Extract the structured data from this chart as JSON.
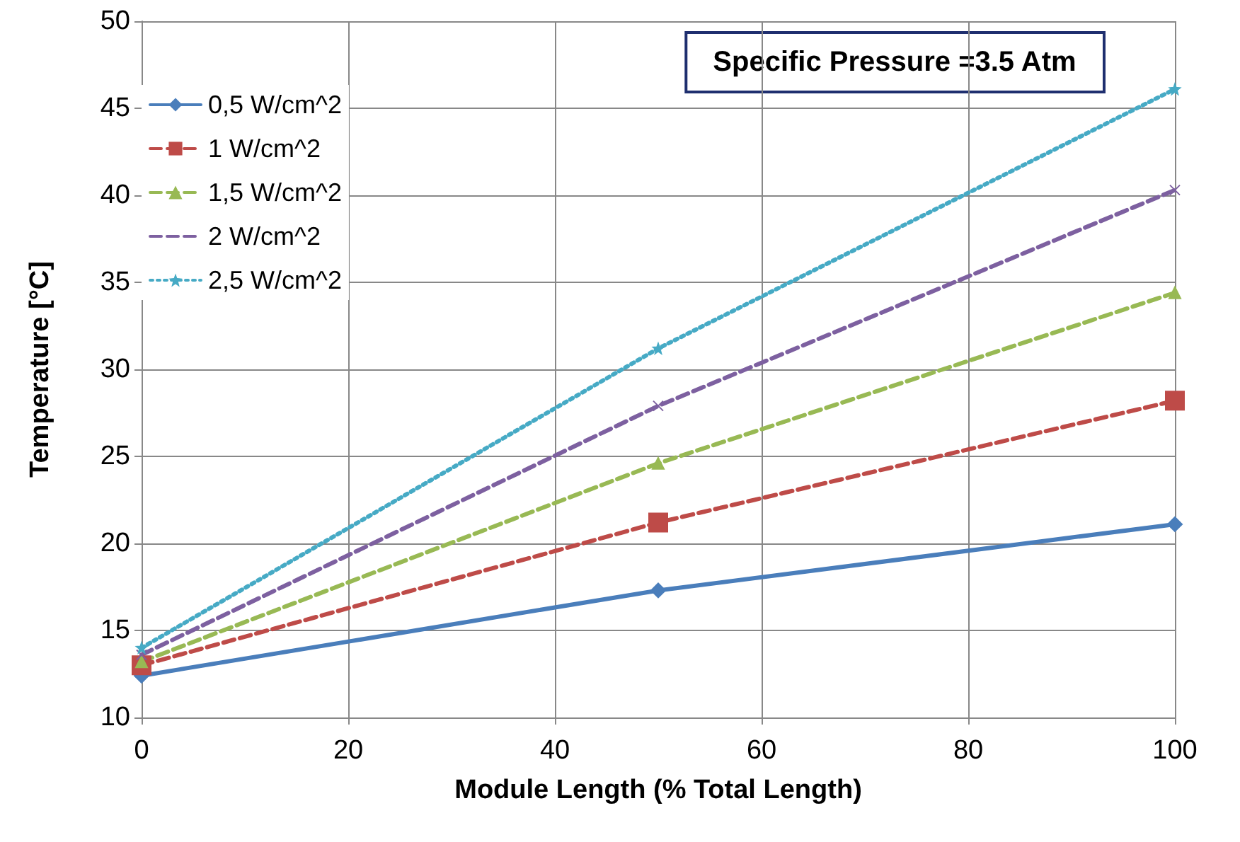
{
  "chart_data": {
    "type": "line",
    "xlabel": "Module Length (% Total Length)",
    "ylabel": "Temperature [°C]",
    "annotations": [
      "Specific Pressure =3.5 Atm"
    ],
    "x": [
      0,
      50,
      100
    ],
    "series": [
      {
        "name": "0,5 W/cm^2",
        "color": "#4a7ebb",
        "values": [
          12.4,
          17.3,
          21.1
        ],
        "marker": "diamond",
        "line_style": "solid"
      },
      {
        "name": "1 W/cm^2",
        "color": "#be4b48",
        "values": [
          13.0,
          21.2,
          28.2
        ],
        "marker": "square",
        "line_style": "dashed"
      },
      {
        "name": "1,5 W/cm^2",
        "color": "#98b954",
        "values": [
          13.2,
          24.6,
          34.4
        ],
        "marker": "triangle",
        "line_style": "dashed"
      },
      {
        "name": "2 W/cm^2",
        "color": "#7d60a0",
        "values": [
          13.6,
          27.9,
          40.3
        ],
        "marker": "cross",
        "line_style": "dashed"
      },
      {
        "name": "2,5 W/cm^2",
        "color": "#46aac5",
        "values": [
          14.0,
          31.2,
          46.1
        ],
        "marker": "star",
        "line_style": "dotted"
      }
    ],
    "xlim": [
      0,
      100
    ],
    "xticks": [
      0,
      20,
      40,
      60,
      80,
      100
    ],
    "ylim": [
      10,
      50
    ],
    "yticks": [
      10,
      15,
      20,
      25,
      30,
      35,
      40,
      45,
      50
    ],
    "grid": true,
    "legend": "top left"
  }
}
